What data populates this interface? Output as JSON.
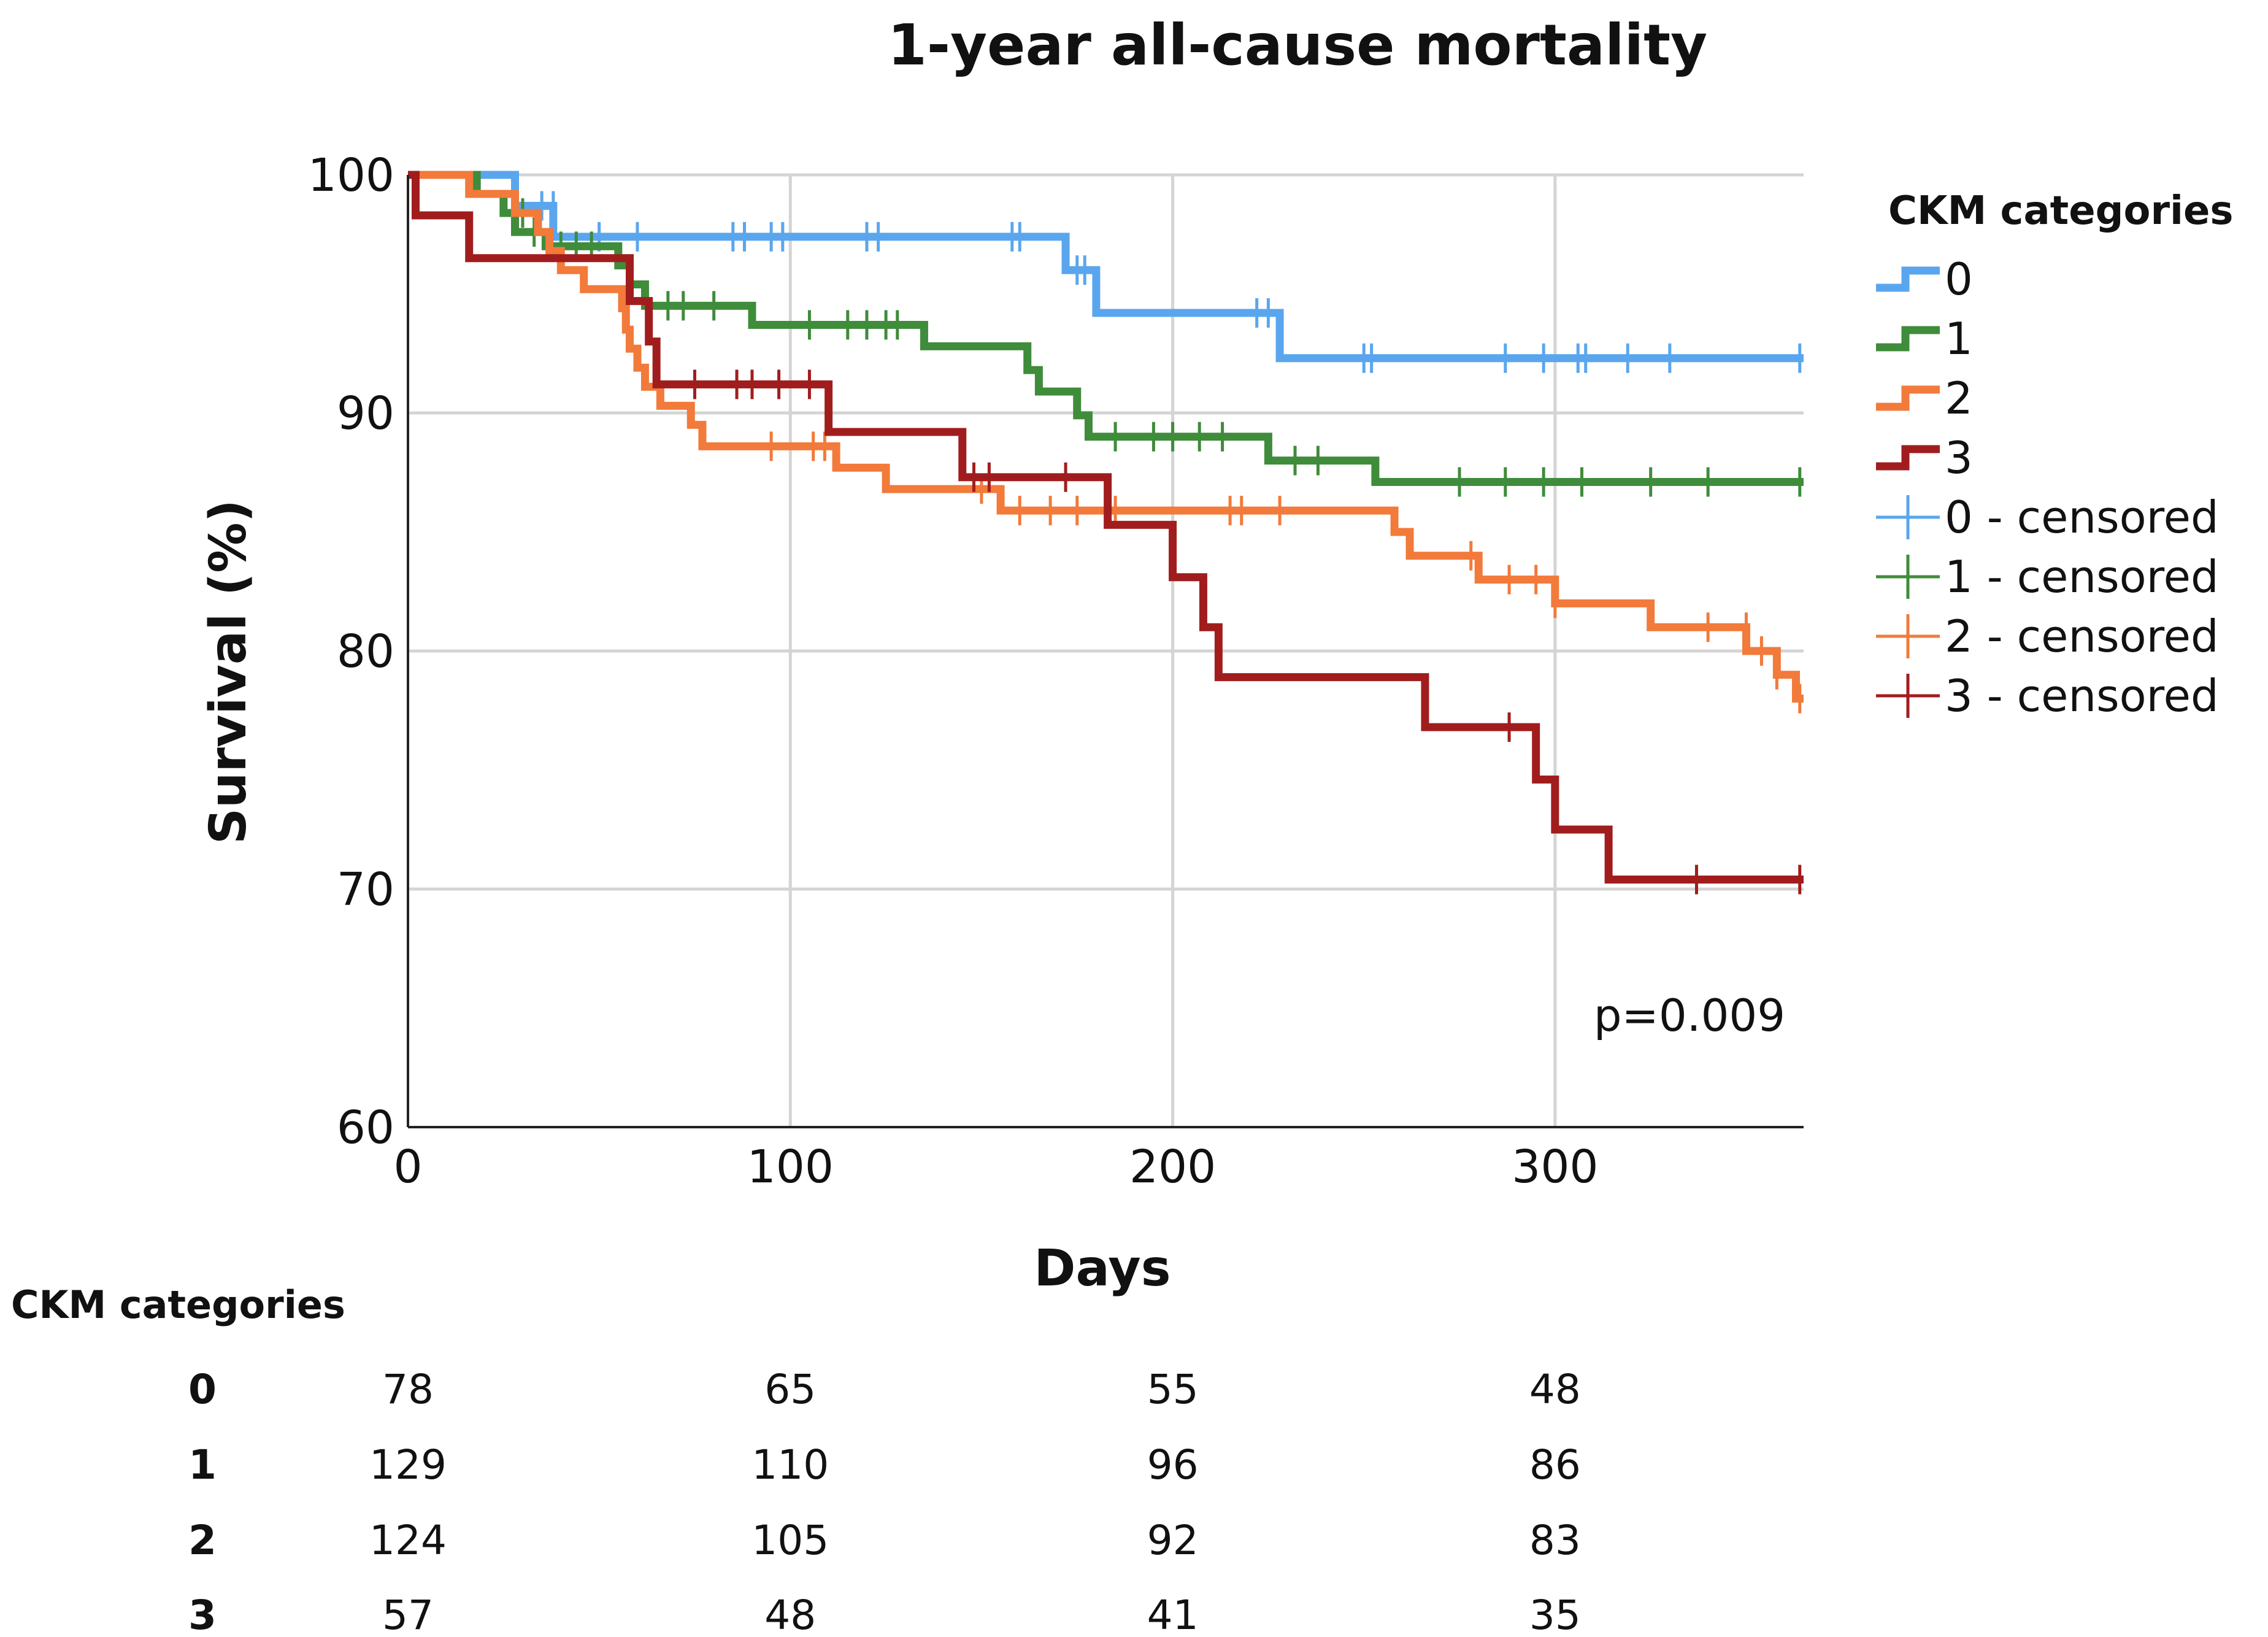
{
  "chart_data": {
    "type": "line",
    "subtype": "kaplan-meier step",
    "title": "1-year all-cause mortality",
    "xlabel": "Days",
    "ylabel": "Survival (%)",
    "xlim": [
      0,
      365
    ],
    "ylim": [
      60,
      100
    ],
    "xticks": [
      0,
      100,
      200,
      300
    ],
    "yticks": [
      60,
      70,
      80,
      90,
      100
    ],
    "grid": true,
    "annotation": "p=0.009",
    "legend": {
      "title": "CKM categories",
      "placement": "right",
      "entries": [
        "0",
        "1",
        "2",
        "3",
        "0 - censored",
        "1 - censored",
        "2 - censored",
        "3 - censored"
      ]
    },
    "series": [
      {
        "name": "0",
        "color": "#5aa6ee",
        "steps": [
          [
            0,
            100
          ],
          [
            28,
            98.7
          ],
          [
            38,
            97.4
          ],
          [
            172,
            96
          ],
          [
            180,
            94.2
          ],
          [
            228,
            92.3
          ],
          [
            365,
            92.3
          ]
        ],
        "censored": [
          [
            35,
            98.7
          ],
          [
            38,
            98.7
          ],
          [
            50,
            97.4
          ],
          [
            60,
            97.4
          ],
          [
            85,
            97.4
          ],
          [
            88,
            97.4
          ],
          [
            95,
            97.4
          ],
          [
            98,
            97.4
          ],
          [
            120,
            97.4
          ],
          [
            123,
            97.4
          ],
          [
            158,
            97.4
          ],
          [
            160,
            97.4
          ],
          [
            175,
            96
          ],
          [
            177,
            96
          ],
          [
            222,
            94.2
          ],
          [
            225,
            94.2
          ],
          [
            250,
            92.3
          ],
          [
            252,
            92.3
          ],
          [
            287,
            92.3
          ],
          [
            297,
            92.3
          ],
          [
            306,
            92.3
          ],
          [
            308,
            92.3
          ],
          [
            319,
            92.3
          ],
          [
            330,
            92.3
          ],
          [
            364,
            92.3
          ]
        ]
      },
      {
        "name": "1",
        "color": "#3f8c3a",
        "steps": [
          [
            0,
            100
          ],
          [
            18,
            99.2
          ],
          [
            25,
            98.4
          ],
          [
            28,
            97.6
          ],
          [
            36,
            97
          ],
          [
            55,
            96.2
          ],
          [
            58,
            95.4
          ],
          [
            62,
            94.5
          ],
          [
            90,
            93.7
          ],
          [
            135,
            92.8
          ],
          [
            162,
            91.8
          ],
          [
            165,
            90.9
          ],
          [
            175,
            89.9
          ],
          [
            178,
            89
          ],
          [
            225,
            88
          ],
          [
            253,
            87.1
          ],
          [
            365,
            87.1
          ]
        ],
        "censored": [
          [
            30,
            98.4
          ],
          [
            33,
            97.6
          ],
          [
            40,
            97
          ],
          [
            44,
            97
          ],
          [
            48,
            97
          ],
          [
            68,
            94.5
          ],
          [
            72,
            94.5
          ],
          [
            80,
            94.5
          ],
          [
            105,
            93.7
          ],
          [
            115,
            93.7
          ],
          [
            120,
            93.7
          ],
          [
            125,
            93.7
          ],
          [
            128,
            93.7
          ],
          [
            185,
            89
          ],
          [
            195,
            89
          ],
          [
            200,
            89
          ],
          [
            207,
            89
          ],
          [
            213,
            89
          ],
          [
            232,
            88
          ],
          [
            238,
            88
          ],
          [
            275,
            87.1
          ],
          [
            287,
            87.1
          ],
          [
            297,
            87.1
          ],
          [
            307,
            87.1
          ],
          [
            325,
            87.1
          ],
          [
            340,
            87.1
          ],
          [
            364,
            87.1
          ]
        ]
      },
      {
        "name": "2",
        "color": "#f27a3a",
        "steps": [
          [
            0,
            100
          ],
          [
            16,
            99.2
          ],
          [
            28,
            98.4
          ],
          [
            34,
            97.6
          ],
          [
            37,
            96.8
          ],
          [
            40,
            96
          ],
          [
            46,
            95.2
          ],
          [
            56,
            94.4
          ],
          [
            57,
            93.5
          ],
          [
            58,
            92.7
          ],
          [
            60,
            91.9
          ],
          [
            62,
            91.1
          ],
          [
            66,
            90.3
          ],
          [
            74,
            89.5
          ],
          [
            77,
            88.6
          ],
          [
            80,
            88.6
          ],
          [
            112,
            87.7
          ],
          [
            125,
            86.8
          ],
          [
            155,
            85.9
          ],
          [
            258,
            85
          ],
          [
            262,
            84
          ],
          [
            280,
            83
          ],
          [
            300,
            82
          ],
          [
            325,
            81
          ],
          [
            350,
            80
          ],
          [
            358,
            79
          ],
          [
            363,
            78
          ],
          [
            365,
            78
          ]
        ],
        "censored": [
          [
            95,
            88.6
          ],
          [
            106,
            88.6
          ],
          [
            109,
            88.6
          ],
          [
            150,
            86.8
          ],
          [
            160,
            85.9
          ],
          [
            168,
            85.9
          ],
          [
            175,
            85.9
          ],
          [
            185,
            85.9
          ],
          [
            215,
            85.9
          ],
          [
            218,
            85.9
          ],
          [
            228,
            85.9
          ],
          [
            278,
            84
          ],
          [
            288,
            83
          ],
          [
            295,
            83
          ],
          [
            300,
            82
          ],
          [
            340,
            81
          ],
          [
            350,
            81
          ],
          [
            354,
            80
          ],
          [
            358,
            79
          ],
          [
            364,
            78
          ]
        ]
      },
      {
        "name": "3",
        "color": "#a11d1d",
        "steps": [
          [
            0,
            100
          ],
          [
            2,
            98.3
          ],
          [
            16,
            96.5
          ],
          [
            58,
            94.7
          ],
          [
            63,
            93
          ],
          [
            65,
            91.2
          ],
          [
            110,
            89.2
          ],
          [
            145,
            87.3
          ],
          [
            183,
            85.3
          ],
          [
            200,
            83.1
          ],
          [
            208,
            81
          ],
          [
            212,
            78.9
          ],
          [
            266,
            76.8
          ],
          [
            295,
            74.6
          ],
          [
            300,
            72.5
          ],
          [
            314,
            70.4
          ],
          [
            365,
            70.4
          ]
        ],
        "censored": [
          [
            75,
            91.2
          ],
          [
            86,
            91.2
          ],
          [
            90,
            91.2
          ],
          [
            97,
            91.2
          ],
          [
            105,
            91.2
          ],
          [
            148,
            87.3
          ],
          [
            152,
            87.3
          ],
          [
            172,
            87.3
          ],
          [
            288,
            76.8
          ],
          [
            337,
            70.4
          ],
          [
            364,
            70.4
          ]
        ]
      }
    ],
    "risk_table": {
      "title": "CKM categories",
      "time_points": [
        0,
        100,
        200,
        300
      ],
      "rows": [
        {
          "label": "0",
          "values": [
            "78",
            "65",
            "55",
            "48"
          ]
        },
        {
          "label": "1",
          "values": [
            "129",
            "110",
            "96",
            "86"
          ]
        },
        {
          "label": "2",
          "values": [
            "124",
            "105",
            "92",
            "83"
          ]
        },
        {
          "label": "3",
          "values": [
            "57",
            "48",
            "41",
            "35"
          ]
        }
      ]
    }
  }
}
